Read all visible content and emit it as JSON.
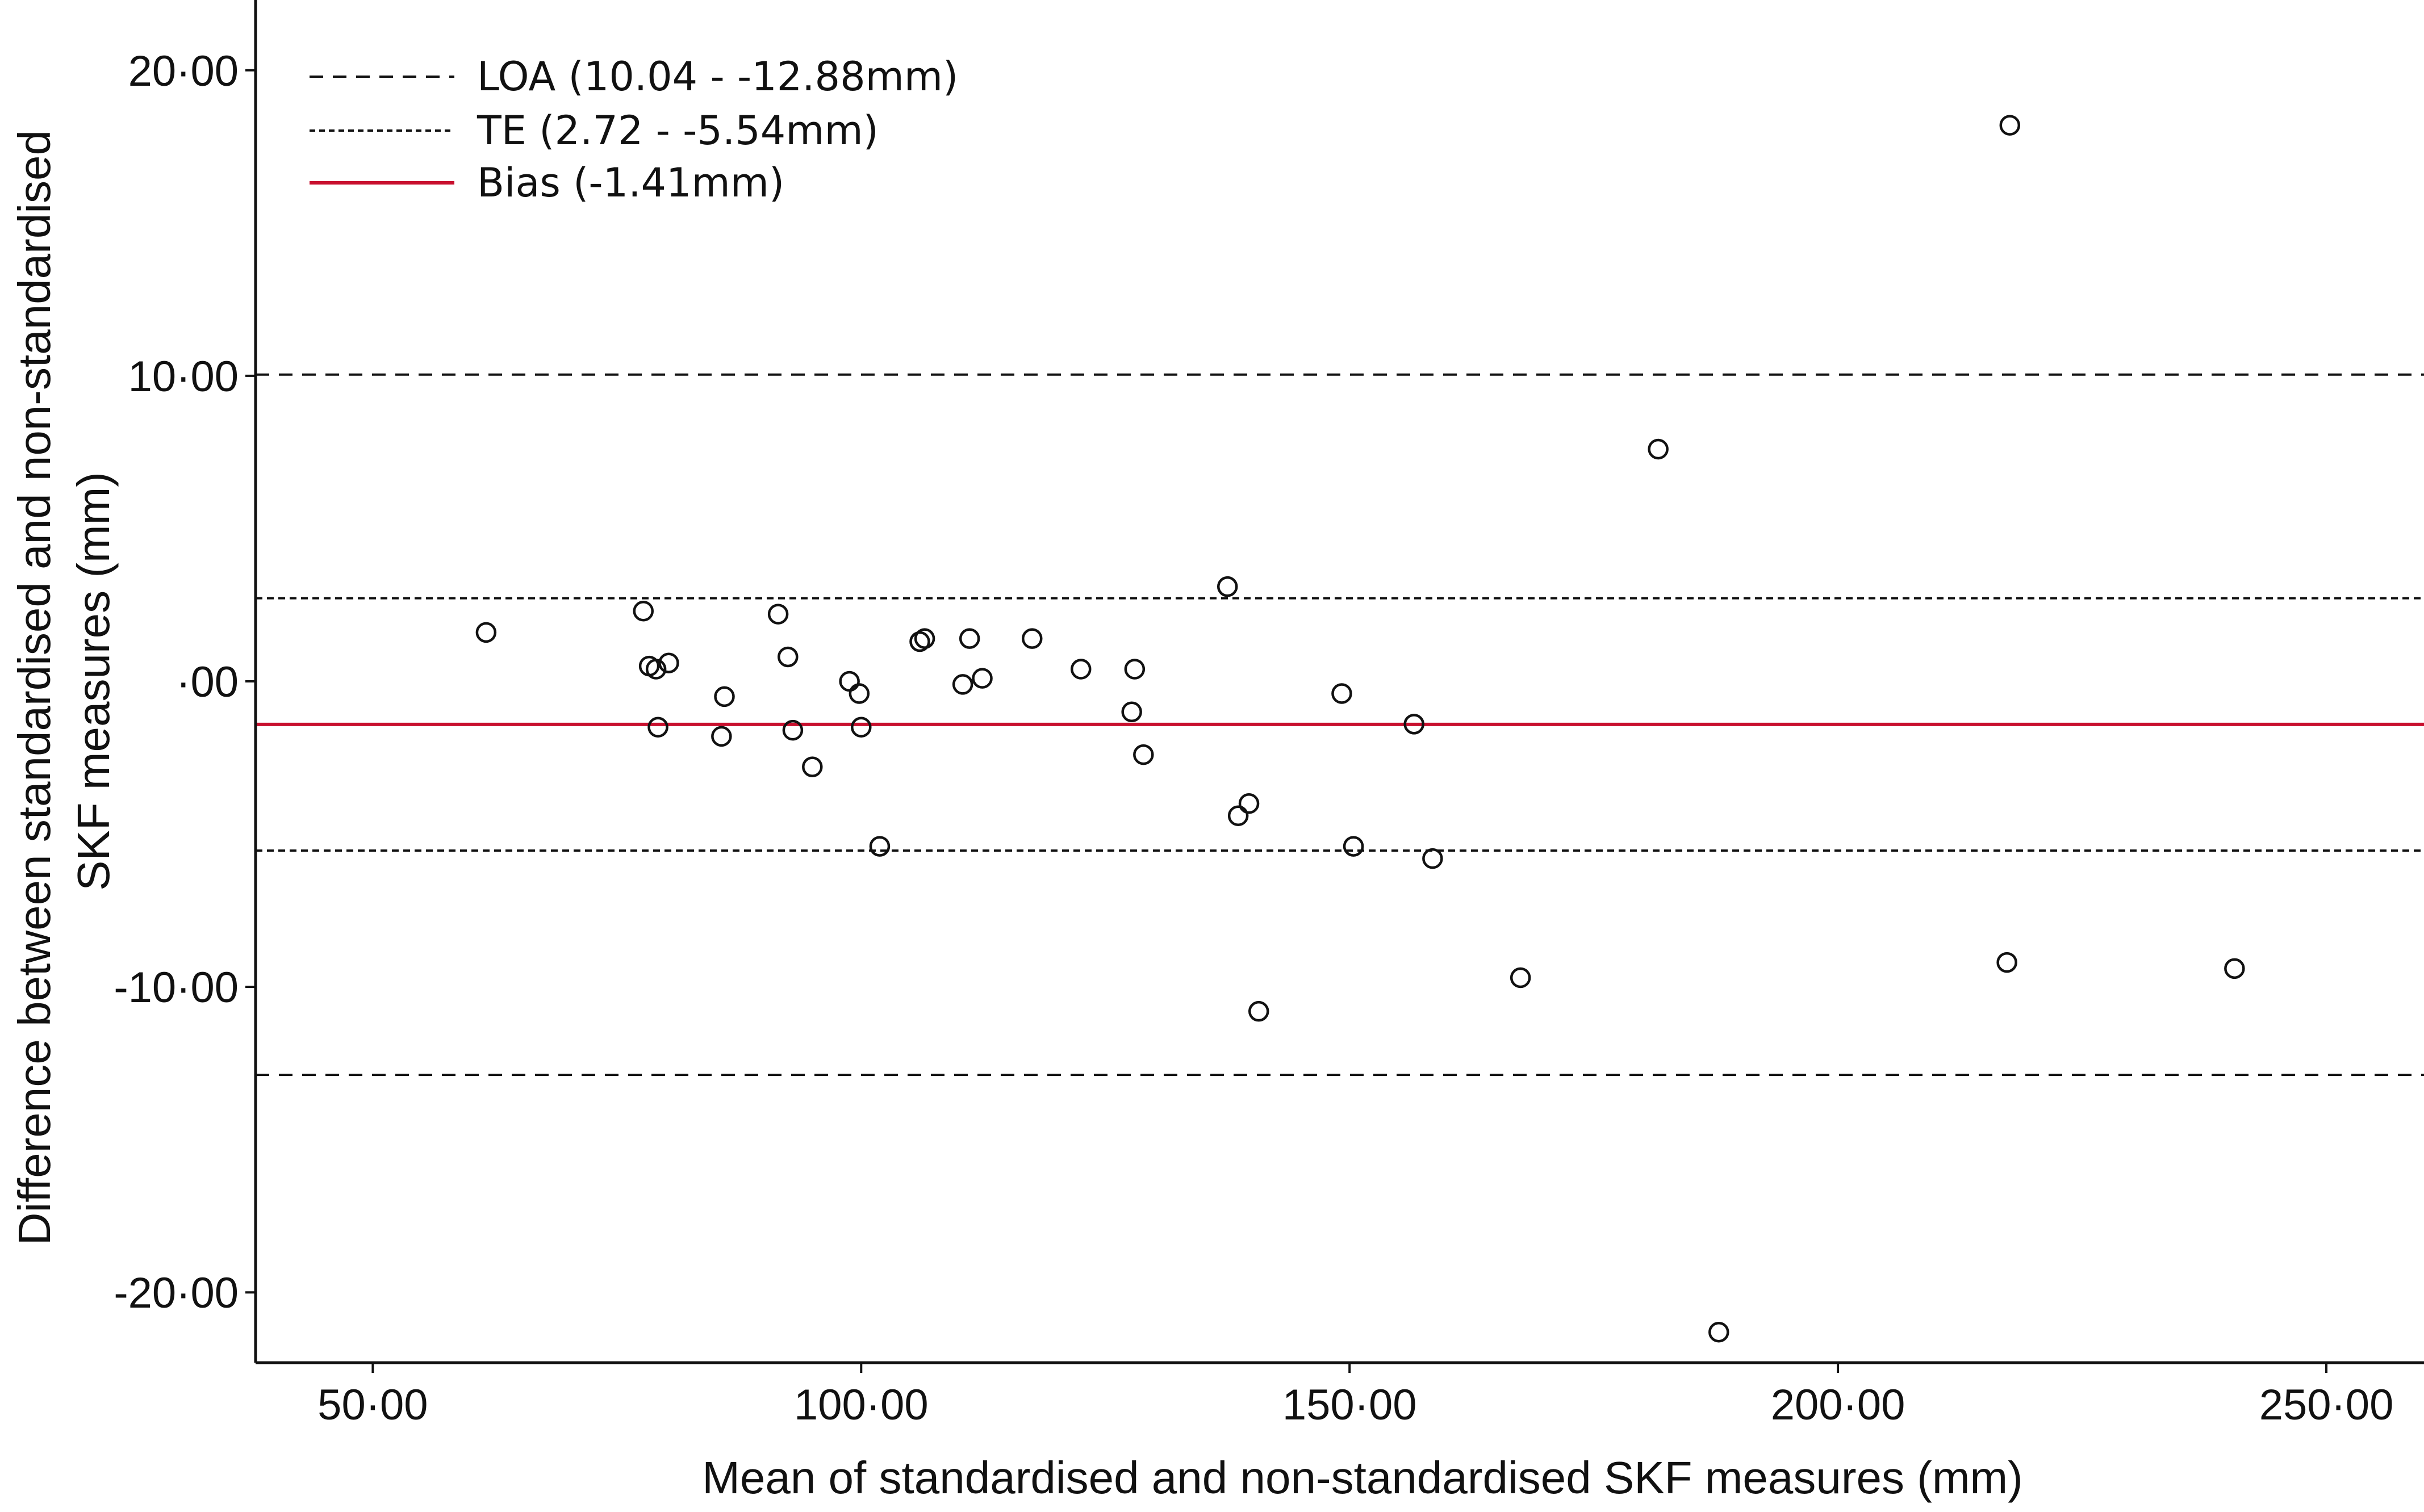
{
  "chart_data": {
    "type": "scatter",
    "title": "",
    "xlabel": "Mean of standardised and non-standardised SKF measures (mm)",
    "ylabel_line1": "Difference between standardised and non-standardised",
    "ylabel_line2": "SKF measures (mm)",
    "xlim": [
      38,
      260
    ],
    "ylim": [
      -22.3,
      22.3
    ],
    "x_ticks": [
      50,
      100,
      150,
      200,
      250
    ],
    "x_tick_labels": [
      "50·00",
      "100·00",
      "150·00",
      "200·00",
      "250·00"
    ],
    "y_ticks": [
      20,
      10,
      0,
      -10,
      -20
    ],
    "y_tick_labels": [
      "20·00",
      "10·00",
      "·00",
      "-10·00",
      "-20·00"
    ],
    "legend_position": "top-left",
    "reference_lines": [
      {
        "name": "LOA upper",
        "y": 10.04,
        "style": "dashed",
        "color": "#111111",
        "in_legend": false
      },
      {
        "name": "TE upper",
        "y": 2.72,
        "style": "dotted",
        "color": "#111111",
        "in_legend": false
      },
      {
        "name": "Bias",
        "y": -1.41,
        "style": "solid",
        "color": "#c8102e",
        "in_legend": false
      },
      {
        "name": "TE lower",
        "y": -5.54,
        "style": "dotted",
        "color": "#111111",
        "in_legend": false
      },
      {
        "name": "LOA lower",
        "y": -12.88,
        "style": "dashed",
        "color": "#111111",
        "in_legend": false
      }
    ],
    "legend": [
      {
        "label": "LOA (10.04 - -12.88mm)",
        "style": "dashed",
        "color": "#111111"
      },
      {
        "label": "TE (2.72 - -5.54mm)",
        "style": "dotted",
        "color": "#111111"
      },
      {
        "label": "Bias (-1.41mm)",
        "style": "solid",
        "color": "#c8102e"
      }
    ],
    "points": [
      {
        "x": 61.6,
        "y": 1.6
      },
      {
        "x": 77.7,
        "y": 2.3
      },
      {
        "x": 78.3,
        "y": 0.5
      },
      {
        "x": 79.0,
        "y": 0.4
      },
      {
        "x": 79.2,
        "y": -1.5
      },
      {
        "x": 80.3,
        "y": 0.6
      },
      {
        "x": 85.7,
        "y": -1.8
      },
      {
        "x": 86.0,
        "y": -0.5
      },
      {
        "x": 91.5,
        "y": 2.2
      },
      {
        "x": 92.5,
        "y": 0.8
      },
      {
        "x": 93.0,
        "y": -1.6
      },
      {
        "x": 95.0,
        "y": -2.8
      },
      {
        "x": 98.8,
        "y": 0.0
      },
      {
        "x": 99.8,
        "y": -0.4
      },
      {
        "x": 100.0,
        "y": -1.5
      },
      {
        "x": 101.9,
        "y": -5.4
      },
      {
        "x": 106.0,
        "y": 1.3
      },
      {
        "x": 106.5,
        "y": 1.4
      },
      {
        "x": 110.4,
        "y": -0.1
      },
      {
        "x": 111.1,
        "y": 1.4
      },
      {
        "x": 112.4,
        "y": 0.1
      },
      {
        "x": 117.5,
        "y": 1.4
      },
      {
        "x": 122.5,
        "y": 0.4
      },
      {
        "x": 127.7,
        "y": -1.0
      },
      {
        "x": 128.0,
        "y": 0.4
      },
      {
        "x": 128.9,
        "y": -2.4
      },
      {
        "x": 137.5,
        "y": 3.1
      },
      {
        "x": 138.6,
        "y": -4.4
      },
      {
        "x": 139.7,
        "y": -4.0
      },
      {
        "x": 140.7,
        "y": -10.8
      },
      {
        "x": 149.2,
        "y": -0.4
      },
      {
        "x": 150.4,
        "y": -5.4
      },
      {
        "x": 156.6,
        "y": -1.4
      },
      {
        "x": 158.5,
        "y": -5.8
      },
      {
        "x": 167.5,
        "y": -9.7
      },
      {
        "x": 181.6,
        "y": 7.6
      },
      {
        "x": 187.8,
        "y": -21.3
      },
      {
        "x": 217.6,
        "y": 18.2
      },
      {
        "x": 217.3,
        "y": -9.2
      },
      {
        "x": 240.6,
        "y": -9.4
      }
    ]
  }
}
